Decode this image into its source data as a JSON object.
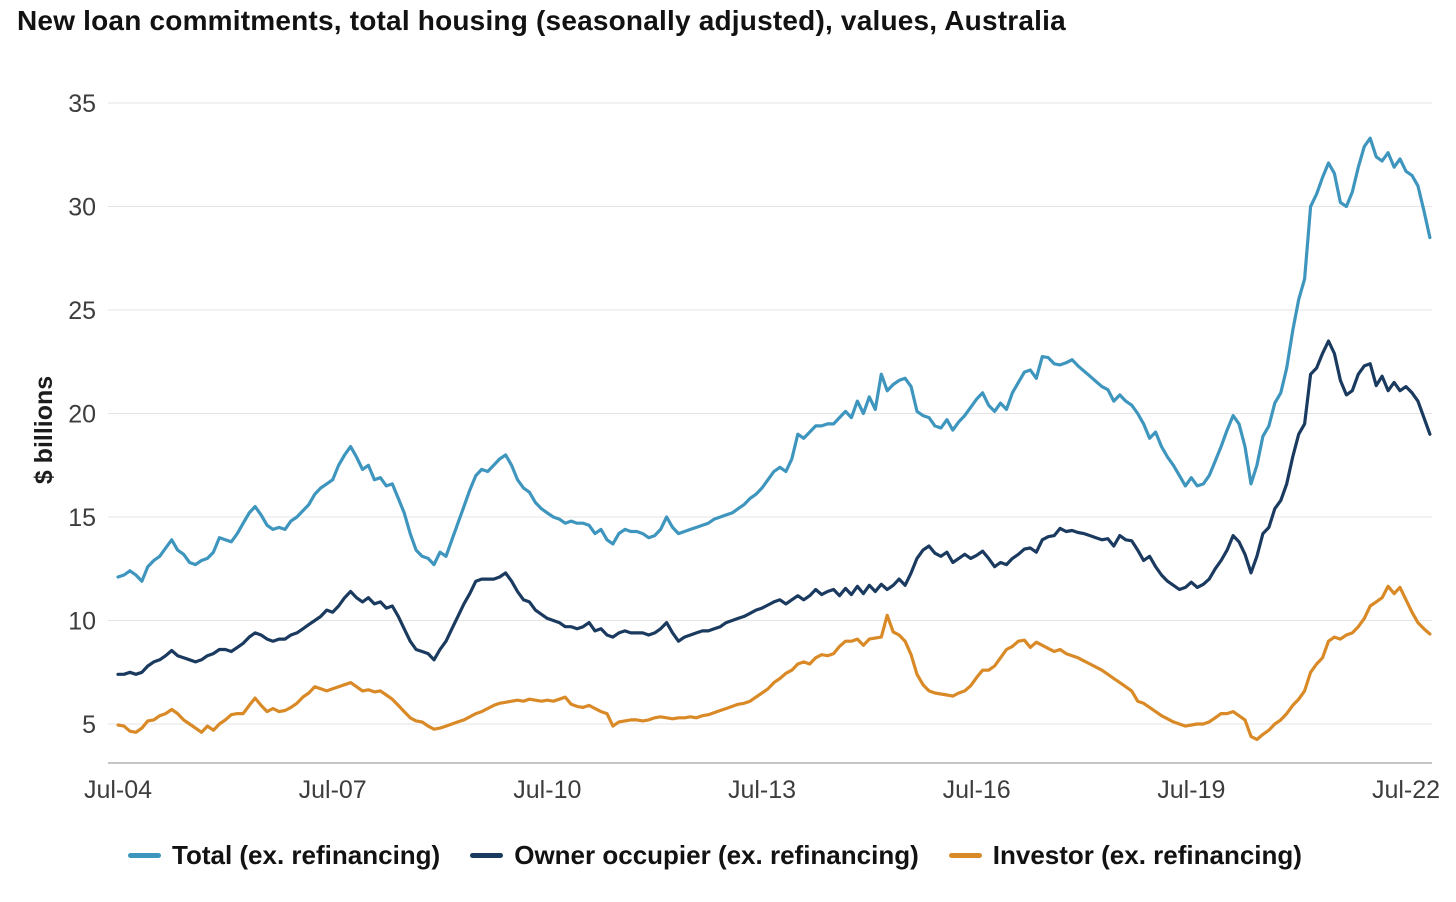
{
  "page": {
    "background": "#ffffff"
  },
  "chart_data": {
    "type": "line",
    "title": "New loan commitments, total housing (seasonally adjusted), values, Australia",
    "ylabel": "$ billions",
    "xlabel": "",
    "x_unit": "month",
    "x_start_label": "Jul-04",
    "x_end_label": "Nov-22",
    "months_total": 221,
    "ylim": [
      5,
      35
    ],
    "y_ticks": [
      35,
      30,
      25,
      20,
      15,
      10,
      5
    ],
    "grid": "horizontal",
    "legend_position": "bottom",
    "colors": {
      "grid": "#e4e4e4",
      "axis": "#c6c6c6",
      "tick_text": "#3d3d3d",
      "title_text": "#121212"
    },
    "x_ticks": [
      {
        "label": "Jul-04",
        "month_index": 0
      },
      {
        "label": "Jul-07",
        "month_index": 36
      },
      {
        "label": "Jul-10",
        "month_index": 72
      },
      {
        "label": "Jul-13",
        "month_index": 108
      },
      {
        "label": "Jul-16",
        "month_index": 144
      },
      {
        "label": "Jul-19",
        "month_index": 180
      },
      {
        "label": "Jul-22",
        "month_index": 216
      }
    ],
    "series": [
      {
        "name": "Total (ex. refinancing)",
        "color": "#3E95BE",
        "stroke_width": 3.2,
        "values": [
          12.1,
          12.2,
          12.4,
          12.2,
          11.9,
          12.6,
          12.9,
          13.1,
          13.5,
          13.9,
          13.4,
          13.2,
          12.8,
          12.7,
          12.9,
          13.0,
          13.3,
          14.0,
          13.9,
          13.8,
          14.2,
          14.7,
          15.2,
          15.5,
          15.1,
          14.6,
          14.4,
          14.5,
          14.4,
          14.8,
          15.0,
          15.3,
          15.6,
          16.1,
          16.4,
          16.6,
          16.8,
          17.5,
          18.0,
          18.4,
          17.9,
          17.3,
          17.5,
          16.8,
          16.9,
          16.5,
          16.6,
          15.9,
          15.2,
          14.2,
          13.4,
          13.1,
          13.0,
          12.7,
          13.3,
          13.1,
          13.9,
          14.7,
          15.5,
          16.3,
          17.0,
          17.3,
          17.2,
          17.5,
          17.8,
          18.0,
          17.5,
          16.8,
          16.4,
          16.2,
          15.7,
          15.4,
          15.2,
          15.0,
          14.9,
          14.7,
          14.8,
          14.7,
          14.7,
          14.6,
          14.2,
          14.4,
          13.9,
          13.7,
          14.2,
          14.4,
          14.3,
          14.3,
          14.2,
          14.0,
          14.1,
          14.4,
          15.0,
          14.5,
          14.2,
          14.3,
          14.4,
          14.5,
          14.6,
          14.7,
          14.9,
          15.0,
          15.1,
          15.2,
          15.4,
          15.6,
          15.9,
          16.1,
          16.4,
          16.8,
          17.2,
          17.4,
          17.2,
          17.8,
          19.0,
          18.8,
          19.1,
          19.4,
          19.4,
          19.5,
          19.5,
          19.8,
          20.1,
          19.8,
          20.6,
          20.0,
          20.8,
          20.2,
          21.9,
          21.1,
          21.4,
          21.6,
          21.7,
          21.3,
          20.1,
          19.9,
          19.8,
          19.4,
          19.3,
          19.7,
          19.2,
          19.6,
          19.9,
          20.3,
          20.7,
          21.0,
          20.4,
          20.1,
          20.5,
          20.2,
          21.0,
          21.5,
          22.0,
          22.1,
          21.7,
          22.75,
          22.7,
          22.4,
          22.35,
          22.45,
          22.6,
          22.3,
          22.05,
          21.8,
          21.55,
          21.3,
          21.15,
          20.6,
          20.9,
          20.6,
          20.4,
          20.0,
          19.5,
          18.8,
          19.1,
          18.4,
          17.9,
          17.5,
          17.0,
          16.5,
          16.9,
          16.5,
          16.6,
          17.0,
          17.7,
          18.4,
          19.2,
          19.9,
          19.5,
          18.4,
          16.6,
          17.5,
          18.9,
          19.4,
          20.5,
          21.0,
          22.2,
          24.0,
          25.5,
          26.5,
          30.0,
          30.6,
          31.4,
          32.1,
          31.6,
          30.2,
          30.0,
          30.7,
          31.9,
          32.9,
          33.3,
          32.4,
          32.2,
          32.6,
          31.9,
          32.3,
          31.7,
          31.5,
          31.0,
          29.8,
          28.5
        ]
      },
      {
        "name": "Owner occupier (ex. refinancing)",
        "color": "#1A3A5F",
        "stroke_width": 3.2,
        "values": [
          7.4,
          7.4,
          7.5,
          7.4,
          7.5,
          7.8,
          8.0,
          8.1,
          8.3,
          8.55,
          8.3,
          8.2,
          8.1,
          8.0,
          8.1,
          8.3,
          8.4,
          8.6,
          8.6,
          8.5,
          8.7,
          8.9,
          9.2,
          9.4,
          9.3,
          9.1,
          9.0,
          9.1,
          9.1,
          9.3,
          9.4,
          9.6,
          9.8,
          10.0,
          10.2,
          10.5,
          10.4,
          10.7,
          11.1,
          11.4,
          11.1,
          10.9,
          11.1,
          10.8,
          10.9,
          10.6,
          10.7,
          10.2,
          9.6,
          9.0,
          8.6,
          8.5,
          8.4,
          8.1,
          8.6,
          9.0,
          9.6,
          10.2,
          10.8,
          11.3,
          11.9,
          12.0,
          12.0,
          12.0,
          12.1,
          12.3,
          11.9,
          11.4,
          11.0,
          10.9,
          10.5,
          10.3,
          10.1,
          10.0,
          9.9,
          9.7,
          9.7,
          9.6,
          9.7,
          9.9,
          9.5,
          9.6,
          9.3,
          9.2,
          9.4,
          9.5,
          9.4,
          9.4,
          9.4,
          9.3,
          9.4,
          9.6,
          9.9,
          9.4,
          9.0,
          9.2,
          9.3,
          9.4,
          9.5,
          9.5,
          9.6,
          9.7,
          9.9,
          10.0,
          10.1,
          10.2,
          10.35,
          10.5,
          10.6,
          10.75,
          10.9,
          11.0,
          10.8,
          11.0,
          11.2,
          11.0,
          11.2,
          11.5,
          11.25,
          11.4,
          11.5,
          11.2,
          11.55,
          11.25,
          11.65,
          11.3,
          11.7,
          11.4,
          11.75,
          11.5,
          11.7,
          12.0,
          11.7,
          12.3,
          13.0,
          13.4,
          13.6,
          13.25,
          13.1,
          13.3,
          12.8,
          13.0,
          13.2,
          13.0,
          13.15,
          13.35,
          13.0,
          12.6,
          12.8,
          12.7,
          13.0,
          13.2,
          13.45,
          13.5,
          13.3,
          13.9,
          14.05,
          14.1,
          14.45,
          14.3,
          14.35,
          14.25,
          14.2,
          14.1,
          14.0,
          13.9,
          13.95,
          13.6,
          14.1,
          13.9,
          13.85,
          13.4,
          12.9,
          13.1,
          12.6,
          12.2,
          11.9,
          11.7,
          11.5,
          11.6,
          11.85,
          11.6,
          11.75,
          12.0,
          12.5,
          12.9,
          13.4,
          14.1,
          13.8,
          13.2,
          12.3,
          13.1,
          14.2,
          14.5,
          15.4,
          15.8,
          16.6,
          17.9,
          19.0,
          19.5,
          21.9,
          22.2,
          22.9,
          23.5,
          22.9,
          21.6,
          20.9,
          21.1,
          21.9,
          22.3,
          22.4,
          21.35,
          21.8,
          21.1,
          21.5,
          21.1,
          21.3,
          21.0,
          20.6,
          19.8,
          19.0
        ]
      },
      {
        "name": "Investor (ex. refinancing)",
        "color": "#D98A27",
        "stroke_width": 3.2,
        "values": [
          4.95,
          4.9,
          4.65,
          4.6,
          4.8,
          5.15,
          5.2,
          5.4,
          5.5,
          5.7,
          5.5,
          5.2,
          5.0,
          4.8,
          4.6,
          4.9,
          4.7,
          5.0,
          5.2,
          5.45,
          5.5,
          5.5,
          5.9,
          6.25,
          5.9,
          5.6,
          5.75,
          5.6,
          5.65,
          5.8,
          6.0,
          6.3,
          6.5,
          6.8,
          6.7,
          6.6,
          6.7,
          6.8,
          6.9,
          7.0,
          6.8,
          6.6,
          6.65,
          6.55,
          6.6,
          6.4,
          6.2,
          5.9,
          5.6,
          5.3,
          5.15,
          5.1,
          4.9,
          4.75,
          4.8,
          4.9,
          5.0,
          5.1,
          5.2,
          5.35,
          5.5,
          5.6,
          5.75,
          5.9,
          6.0,
          6.05,
          6.1,
          6.15,
          6.1,
          6.2,
          6.15,
          6.1,
          6.15,
          6.1,
          6.2,
          6.3,
          5.95,
          5.85,
          5.8,
          5.9,
          5.75,
          5.6,
          5.5,
          4.9,
          5.1,
          5.15,
          5.2,
          5.2,
          5.15,
          5.2,
          5.3,
          5.35,
          5.3,
          5.25,
          5.3,
          5.3,
          5.35,
          5.3,
          5.4,
          5.45,
          5.55,
          5.65,
          5.75,
          5.85,
          5.95,
          6.0,
          6.1,
          6.3,
          6.5,
          6.7,
          7.0,
          7.2,
          7.45,
          7.6,
          7.9,
          8.0,
          7.9,
          8.2,
          8.35,
          8.3,
          8.4,
          8.75,
          9.0,
          9.0,
          9.1,
          8.8,
          9.1,
          9.15,
          9.2,
          10.25,
          9.45,
          9.3,
          9.0,
          8.35,
          7.4,
          6.9,
          6.6,
          6.5,
          6.45,
          6.4,
          6.35,
          6.5,
          6.6,
          6.85,
          7.25,
          7.6,
          7.6,
          7.8,
          8.2,
          8.6,
          8.75,
          9.0,
          9.05,
          8.7,
          8.95,
          8.8,
          8.65,
          8.5,
          8.6,
          8.4,
          8.3,
          8.2,
          8.05,
          7.9,
          7.75,
          7.6,
          7.4,
          7.2,
          7.0,
          6.8,
          6.6,
          6.1,
          6.0,
          5.8,
          5.6,
          5.4,
          5.25,
          5.1,
          5.0,
          4.9,
          4.95,
          5.0,
          5.0,
          5.1,
          5.3,
          5.5,
          5.5,
          5.6,
          5.4,
          5.2,
          4.4,
          4.25,
          4.5,
          4.7,
          5.0,
          5.2,
          5.5,
          5.9,
          6.2,
          6.6,
          7.5,
          7.9,
          8.2,
          9.0,
          9.2,
          9.1,
          9.3,
          9.4,
          9.7,
          10.1,
          10.7,
          10.9,
          11.1,
          11.65,
          11.3,
          11.6,
          11.0,
          10.4,
          9.9,
          9.6,
          9.35
        ]
      }
    ]
  }
}
